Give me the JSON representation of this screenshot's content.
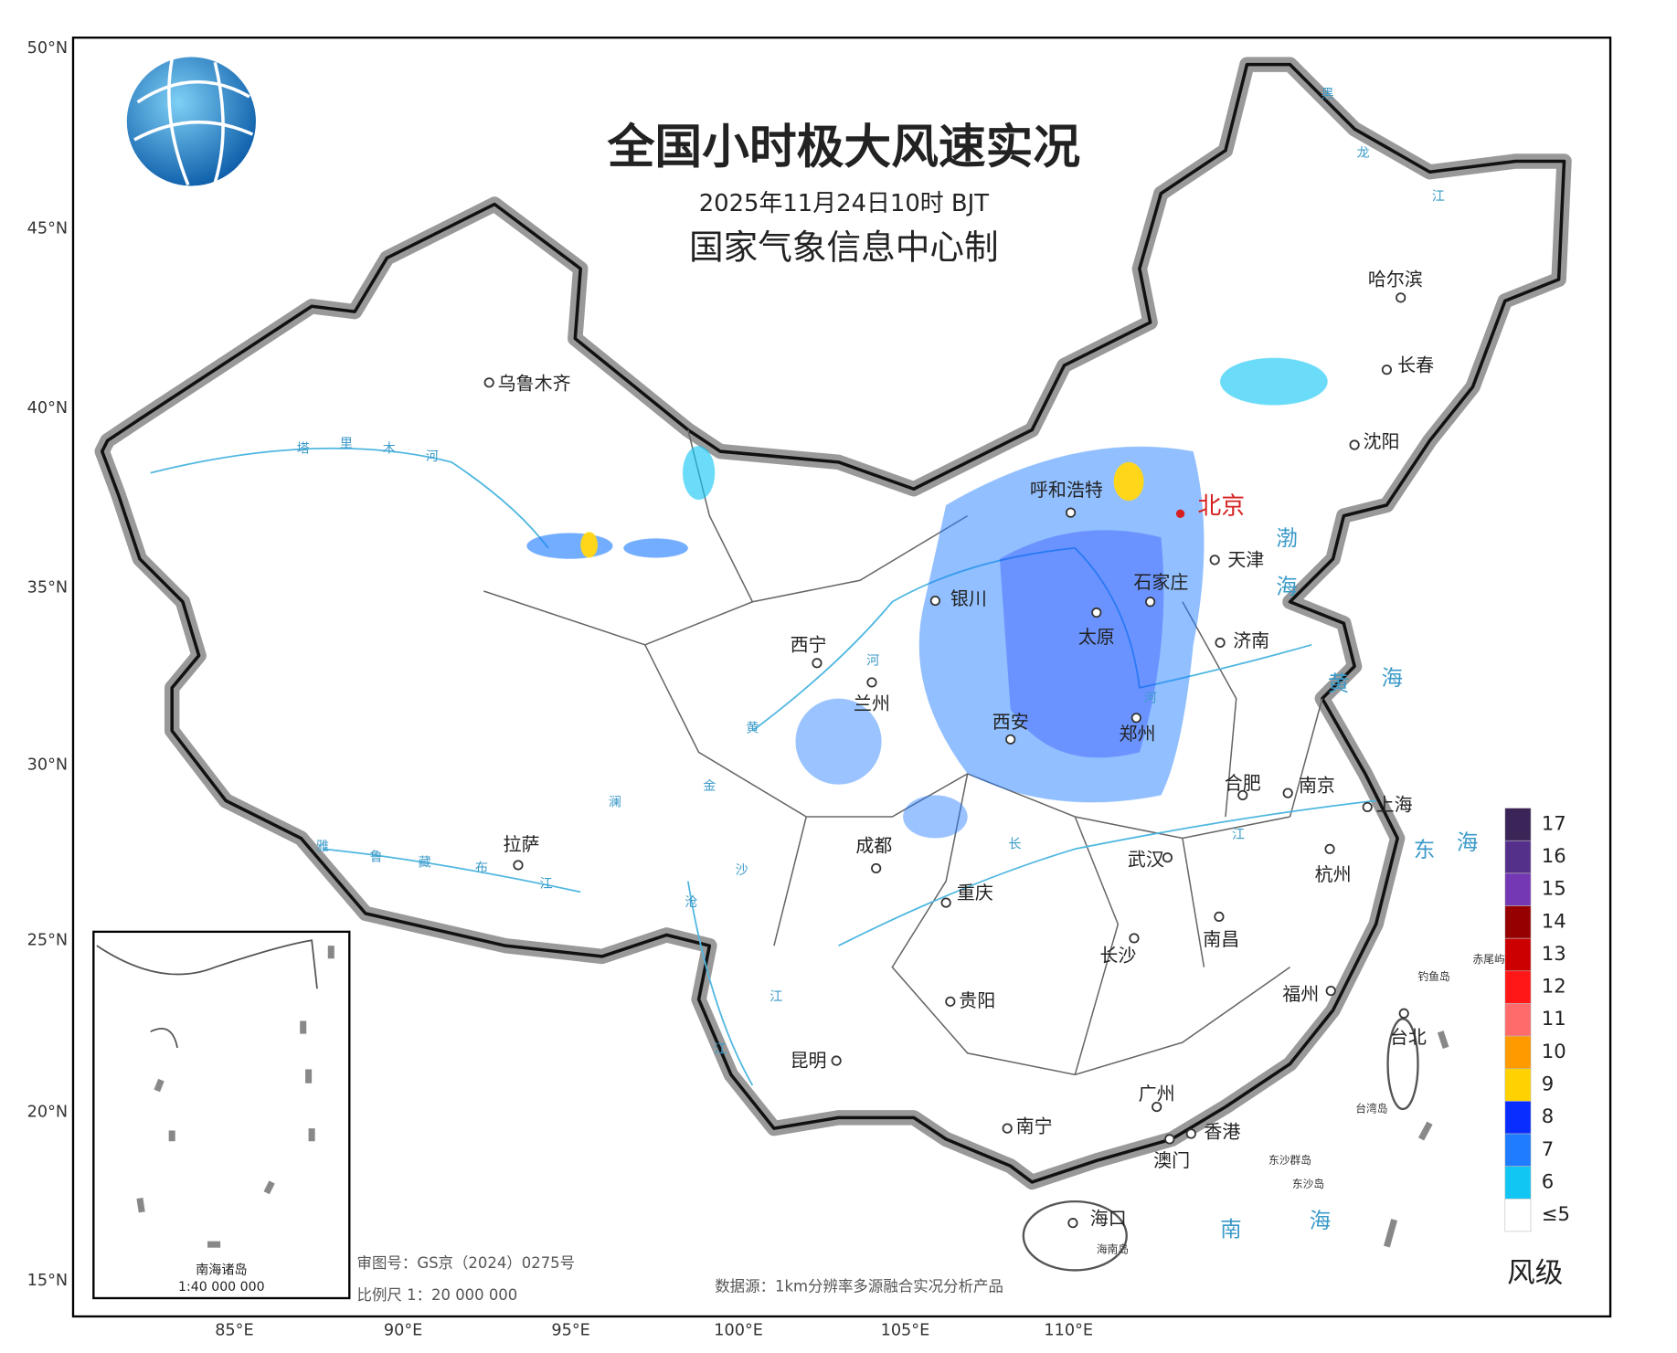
{
  "map": {
    "title": "全国小时极大风速实况",
    "subtitle": "2025年11月24日10时 BJT",
    "producer": "国家气象信息中心制",
    "lat_labels": [
      "50°N",
      "45°N",
      "40°N",
      "35°N",
      "30°N",
      "25°N",
      "20°N",
      "15°N"
    ],
    "lon_labels": [
      "85°E",
      "90°E",
      "95°E",
      "100°E",
      "105°E",
      "110°E"
    ],
    "capital": "北京",
    "cities": [
      "乌鲁木齐",
      "拉萨",
      "西宁",
      "兰州",
      "成都",
      "银川",
      "呼和浩特",
      "天津",
      "石家庄",
      "太原",
      "济南",
      "西安",
      "郑州",
      "合肥",
      "南京",
      "上海",
      "武汉",
      "杭州",
      "重庆",
      "长沙",
      "南昌",
      "贵阳",
      "福州",
      "台北",
      "昆明",
      "广州",
      "南宁",
      "香港",
      "澳门",
      "海口",
      "哈尔滨",
      "长春",
      "沈阳"
    ],
    "seas": [
      "渤",
      "海",
      "黄",
      "海",
      "东",
      "海",
      "南",
      "海"
    ],
    "rivers": [
      "塔",
      "里",
      "木",
      "河",
      "雅",
      "鲁",
      "藏",
      "布",
      "江",
      "黄",
      "河",
      "河",
      "长",
      "江",
      "金",
      "沙",
      "江",
      "澜",
      "沧",
      "江",
      "黑",
      "龙",
      "江"
    ],
    "islands": [
      "钓鱼岛",
      "赤尾屿",
      "台湾岛",
      "东沙群岛",
      "东沙岛",
      "海南岛"
    ],
    "inset": {
      "title": "南海诸岛",
      "scale": "1:40 000 000"
    },
    "review_number": "审图号：GS京（2024）0275号",
    "scale": "比例尺 1：20 000 000",
    "source": "数据源：1km分辨率多源融合实况分析产品",
    "legend": {
      "title": "风级",
      "levels": [
        {
          "label": "17",
          "color": "#3b2458"
        },
        {
          "label": "16",
          "color": "#55308a"
        },
        {
          "label": "15",
          "color": "#7438b4"
        },
        {
          "label": "14",
          "color": "#960000"
        },
        {
          "label": "13",
          "color": "#cc0000"
        },
        {
          "label": "12",
          "color": "#ff1717"
        },
        {
          "label": "11",
          "color": "#ff6b6b"
        },
        {
          "label": "10",
          "color": "#ff9a00"
        },
        {
          "label": "9",
          "color": "#ffd200"
        },
        {
          "label": "8",
          "color": "#0a2dff"
        },
        {
          "label": "7",
          "color": "#1f7cff"
        },
        {
          "label": "6",
          "color": "#12c6f3"
        },
        {
          "label": "≤5",
          "color": "#ffffff"
        }
      ]
    }
  }
}
